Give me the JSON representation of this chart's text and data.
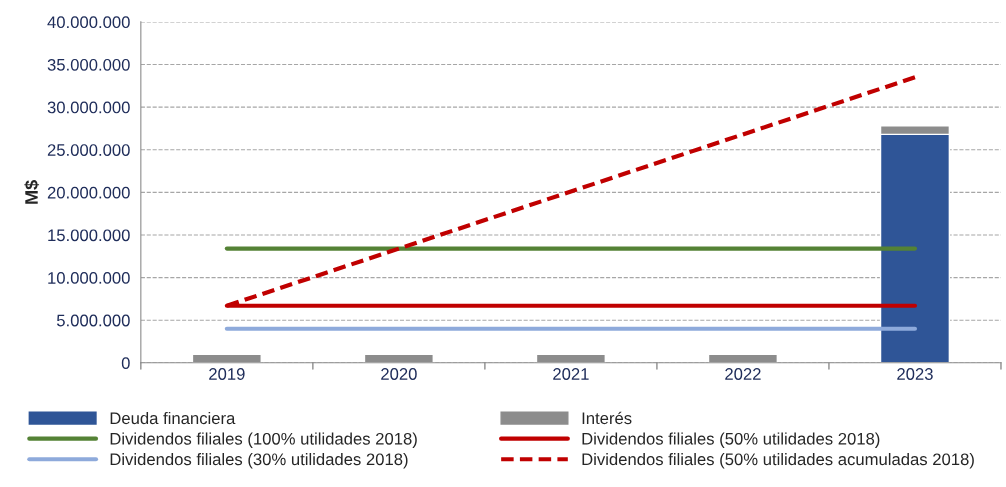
{
  "chart_data": {
    "type": "bar",
    "stacked": true,
    "ylabel": "M$",
    "categories": [
      "2019",
      "2020",
      "2021",
      "2022",
      "2023"
    ],
    "series": [
      {
        "name": "Deuda financiera",
        "color": "#2f5597",
        "values": [
          0,
          0,
          0,
          0,
          26800000
        ]
      },
      {
        "name": "Interés",
        "color": "#8c8c8c",
        "values": [
          1000000,
          1000000,
          1000000,
          1000000,
          1000000
        ]
      },
      {
        "name": "Dividendos filiales (100% utilidades 2018)",
        "type": "line",
        "color": "#548235",
        "line_style": "solid",
        "values": [
          13400000,
          13400000,
          13400000,
          13400000,
          13400000
        ]
      },
      {
        "name": "Dividendos filiales (50% utilidades 2018)",
        "type": "line",
        "color": "#c00000",
        "line_style": "solid",
        "values": [
          6700000,
          6700000,
          6700000,
          6700000,
          6700000
        ]
      },
      {
        "name": "Dividendos filiales (30% utilidades 2018)",
        "type": "line",
        "color": "#8eaadb",
        "line_style": "solid",
        "values": [
          4000000,
          4000000,
          4000000,
          4000000,
          4000000
        ]
      },
      {
        "name": "Dividendos filiales (50% utilidades acumuladas 2018)",
        "type": "line",
        "color": "#c00000",
        "line_style": "dashed",
        "values": [
          6700000,
          13400000,
          20100000,
          26800000,
          33500000
        ]
      }
    ],
    "ylim": [
      0,
      40000000
    ],
    "yticks": [
      0,
      {
        "value": 5000000,
        "label": "5.000.000"
      },
      {
        "value": 10000000,
        "label": "10.000.000"
      },
      {
        "value": 15000000,
        "label": "15.000.000"
      },
      {
        "value": 20000000,
        "label": "20.000.000"
      },
      {
        "value": 25000000,
        "label": "25.000.000"
      },
      {
        "value": 30000000,
        "label": "30.000.000"
      },
      {
        "value": 35000000,
        "label": "35.000.000"
      },
      {
        "value": 40000000,
        "label": "40.000.000"
      }
    ],
    "grid": "y",
    "legend": "bottom"
  }
}
